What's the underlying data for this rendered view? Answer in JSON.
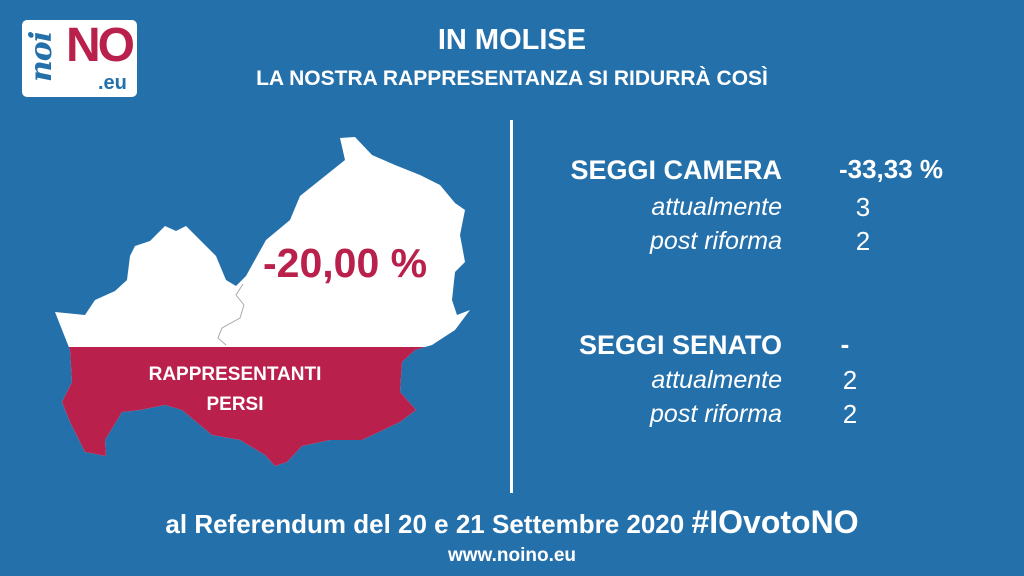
{
  "logo": {
    "text": "noiNO.eu"
  },
  "header": {
    "title": "IN MOLISE",
    "subtitle": "LA NOSTRA RAPPRESENTANZA SI RIDURRÀ COSÌ"
  },
  "map": {
    "percent": "-20,00 %",
    "label_line1": "RAPPRESENTANTI",
    "label_line2": "PERSI",
    "fill_fraction_lost": 0.2
  },
  "camera": {
    "title": "SEGGI CAMERA",
    "change": "-33,33 %",
    "current_label": "attualmente",
    "current": "3",
    "post_label": "post riforma",
    "post": "2"
  },
  "senato": {
    "title": "SEGGI SENATO",
    "change": "-",
    "current_label": "attualmente",
    "current": "2",
    "post_label": "post riforma",
    "post": "2"
  },
  "footer": {
    "text": "al Referendum del 20 e 21 Settembre 2020",
    "hashtag": "#IOvotoNO",
    "url": "www.noino.eu"
  },
  "colors": {
    "background": "#2470ab",
    "accent": "#b9204b"
  }
}
